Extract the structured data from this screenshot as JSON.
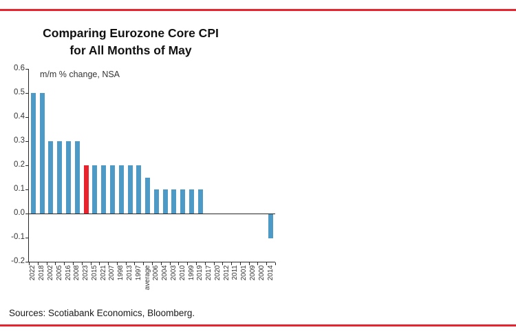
{
  "page": {
    "title_line1": "Comparing Eurozone Core CPI",
    "title_line2": "for All Months of May",
    "sources": "Sources: Scotiabank Economics, Bloomberg."
  },
  "colors": {
    "accent_red": "#e8232d",
    "bar_blue": "#4e9ac7",
    "axis": "#262626"
  },
  "chart_data": {
    "type": "bar",
    "title": "Comparing Eurozone Core CPI for All Months of May",
    "subtitle": "m/m % change, NSA",
    "categories": [
      "2022",
      "2018",
      "2002",
      "2005",
      "2016",
      "2008",
      "2023",
      "2015",
      "2021",
      "2007",
      "1998",
      "2013",
      "1997",
      "average",
      "2006",
      "2004",
      "2003",
      "2010",
      "1999",
      "2019",
      "2017",
      "2020",
      "2012",
      "2011",
      "2001",
      "2009",
      "2000",
      "2014"
    ],
    "values": [
      0.5,
      0.5,
      0.3,
      0.3,
      0.3,
      0.3,
      0.2,
      0.2,
      0.2,
      0.2,
      0.2,
      0.2,
      0.2,
      0.15,
      0.1,
      0.1,
      0.1,
      0.1,
      0.1,
      0.1,
      0.0,
      0.0,
      0.0,
      0.0,
      0.0,
      0.0,
      0.0,
      -0.1
    ],
    "highlight_category": "2023",
    "ylim": [
      -0.2,
      0.6
    ],
    "ytick_labels": [
      "0.6",
      "0.5",
      "0.4",
      "0.3",
      "0.2",
      "0.1",
      "0.0",
      "-0.1",
      "-0.2"
    ],
    "xlabel": "",
    "ylabel": "",
    "grid": false,
    "legend": false,
    "sorted": "descending"
  }
}
